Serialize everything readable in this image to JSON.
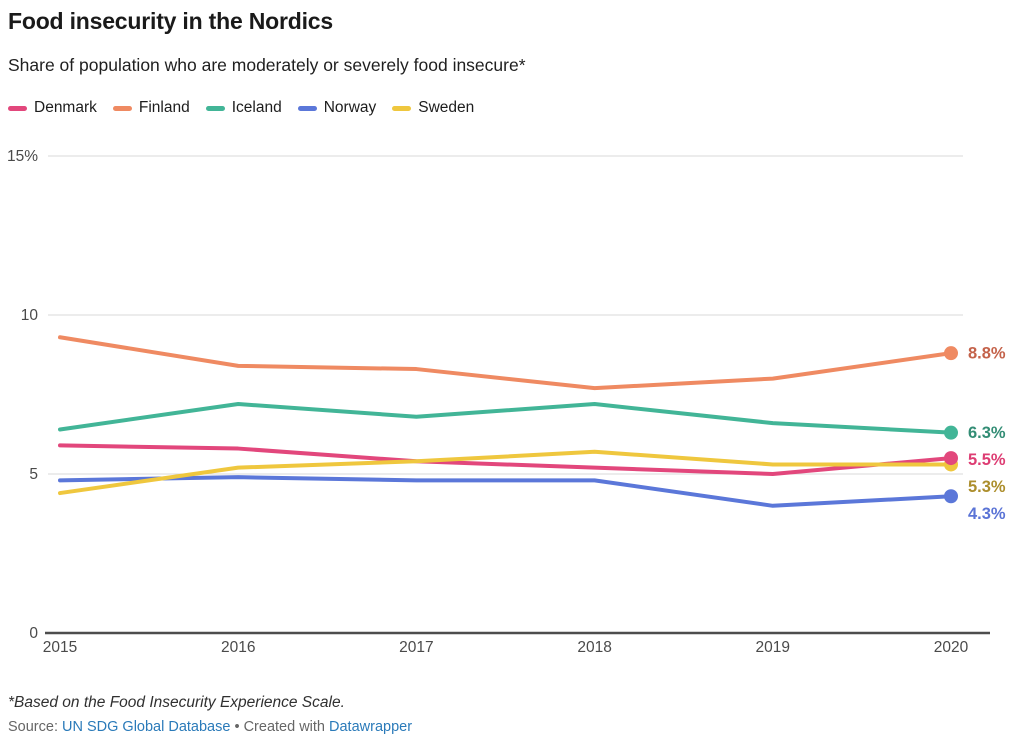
{
  "header": {
    "title": "Food insecurity in the Nordics",
    "subtitle": "Share of population who are moderately or severely food insecure*"
  },
  "chart_data": {
    "type": "line",
    "x": [
      "2015",
      "2016",
      "2017",
      "2018",
      "2019",
      "2020"
    ],
    "series": [
      {
        "name": "Denmark",
        "color": "#e2477c",
        "label_color": "#dd3d73",
        "values": [
          5.9,
          5.8,
          5.4,
          5.2,
          5.0,
          5.5
        ],
        "end_label": "5.5%"
      },
      {
        "name": "Finland",
        "color": "#ef8a62",
        "label_color": "#c4624a",
        "values": [
          9.3,
          8.4,
          8.3,
          7.7,
          8.0,
          8.8
        ],
        "end_label": "8.8%"
      },
      {
        "name": "Iceland",
        "color": "#42b597",
        "label_color": "#338d75",
        "values": [
          6.4,
          7.2,
          6.8,
          7.2,
          6.6,
          6.3
        ],
        "end_label": "6.3%"
      },
      {
        "name": "Norway",
        "color": "#5b77d9",
        "label_color": "#5b74d6",
        "values": [
          4.8,
          4.9,
          4.8,
          4.8,
          4.0,
          4.3
        ],
        "end_label": "4.3%"
      },
      {
        "name": "Sweden",
        "color": "#efc73e",
        "label_color": "#ac8e2c",
        "values": [
          4.4,
          5.2,
          5.4,
          5.7,
          5.3,
          5.3
        ],
        "end_label": "5.3%"
      }
    ],
    "ylim": [
      0,
      15
    ],
    "yticks": [
      {
        "value": 0,
        "label": "0"
      },
      {
        "value": 5,
        "label": "5"
      },
      {
        "value": 10,
        "label": "10"
      },
      {
        "value": 15,
        "label": "15%"
      }
    ],
    "title": "Food insecurity in the Nordics",
    "xlabel": "",
    "ylabel": "",
    "grid": true,
    "legend_position": "top",
    "colors": {
      "gridline": "#d9d9d9",
      "axis_line": "#4d4d4d",
      "tick_text": "#4a4a4a"
    }
  },
  "footer": {
    "note": "*Based on the Food Insecurity Experience Scale.",
    "source_prefix": "Source: ",
    "source_link": "UN SDG Global Database",
    "separator": " • ",
    "created_with": "Created with ",
    "creator_link": "Datawrapper"
  }
}
